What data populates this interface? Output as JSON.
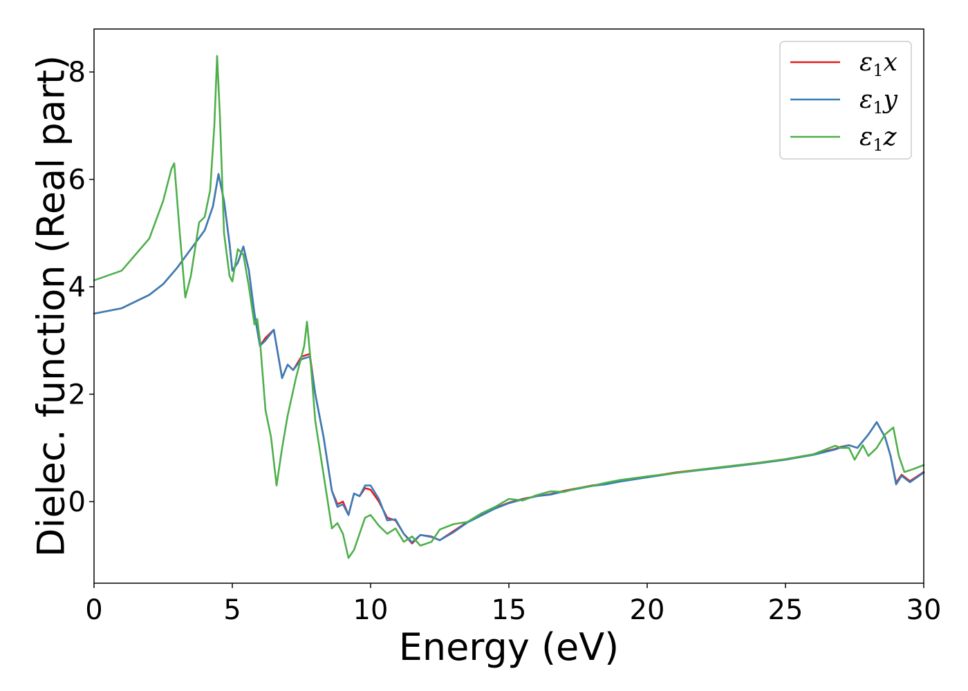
{
  "chart_data": {
    "type": "line",
    "xlabel": "Energy (eV)",
    "ylabel": "Dielec. function (Real part)",
    "xlim": [
      0,
      30
    ],
    "ylim": [
      -1.52,
      8.8
    ],
    "xticks": [
      0,
      5,
      10,
      15,
      20,
      25,
      30
    ],
    "xtick_labels": [
      "0",
      "5",
      "10",
      "15",
      "20",
      "25",
      "30"
    ],
    "yticks": [
      0,
      2,
      4,
      6,
      8
    ],
    "ytick_labels": [
      "0",
      "2",
      "4",
      "6",
      "8"
    ],
    "grid": false,
    "legend_position": "top-right",
    "series": [
      {
        "name": "ε1x",
        "symbol": "ε",
        "subscript": "1",
        "suffix": "x",
        "color": "#e41a1c",
        "x": [
          0,
          1,
          2,
          2.5,
          3,
          3.5,
          4,
          4.3,
          4.5,
          4.7,
          4.9,
          5.0,
          5.2,
          5.4,
          5.6,
          5.8,
          6.0,
          6.2,
          6.5,
          6.8,
          7.0,
          7.2,
          7.5,
          7.8,
          8.0,
          8.3,
          8.6,
          8.8,
          9.0,
          9.2,
          9.4,
          9.6,
          9.8,
          10.0,
          10.3,
          10.6,
          10.9,
          11.2,
          11.5,
          11.8,
          12.2,
          12.5,
          13.0,
          13.5,
          14.0,
          14.5,
          15.0,
          15.5,
          16.0,
          16.5,
          17.0,
          17.5,
          18.0,
          18.5,
          19.0,
          20.0,
          21.0,
          22.0,
          23.0,
          24.0,
          25.0,
          26.0,
          26.8,
          27.0,
          27.3,
          27.6,
          28.0,
          28.3,
          28.6,
          28.8,
          29.0,
          29.2,
          29.5,
          30.0
        ],
        "values": [
          3.5,
          3.6,
          3.85,
          4.05,
          4.35,
          4.7,
          5.05,
          5.5,
          6.1,
          5.6,
          4.8,
          4.3,
          4.45,
          4.75,
          4.3,
          3.5,
          2.9,
          3.05,
          3.2,
          2.3,
          2.55,
          2.45,
          2.7,
          2.75,
          2.0,
          1.2,
          0.2,
          -0.05,
          0.0,
          -0.25,
          0.15,
          0.1,
          0.25,
          0.22,
          0.0,
          -0.3,
          -0.35,
          -0.6,
          -0.78,
          -0.62,
          -0.65,
          -0.72,
          -0.55,
          -0.38,
          -0.25,
          -0.12,
          -0.02,
          0.05,
          0.1,
          0.14,
          0.2,
          0.25,
          0.3,
          0.33,
          0.38,
          0.46,
          0.54,
          0.6,
          0.66,
          0.72,
          0.79,
          0.88,
          0.98,
          1.02,
          1.05,
          1.0,
          1.25,
          1.48,
          1.2,
          0.85,
          0.35,
          0.5,
          0.38,
          0.55
        ]
      },
      {
        "name": "ε1y",
        "symbol": "ε",
        "subscript": "1",
        "suffix": "y",
        "color": "#377eb8",
        "x": [
          0,
          1,
          2,
          2.5,
          3,
          3.5,
          4,
          4.3,
          4.5,
          4.7,
          4.9,
          5.0,
          5.2,
          5.4,
          5.6,
          5.8,
          6.0,
          6.2,
          6.5,
          6.8,
          7.0,
          7.2,
          7.5,
          7.8,
          8.0,
          8.3,
          8.6,
          8.8,
          9.0,
          9.2,
          9.4,
          9.6,
          9.8,
          10.0,
          10.3,
          10.6,
          10.9,
          11.2,
          11.5,
          11.8,
          12.2,
          12.5,
          13.0,
          13.5,
          14.0,
          14.5,
          15.0,
          15.5,
          16.0,
          16.5,
          17.0,
          17.5,
          18.0,
          18.5,
          19.0,
          20.0,
          21.0,
          22.0,
          23.0,
          24.0,
          25.0,
          26.0,
          26.8,
          27.0,
          27.3,
          27.6,
          28.0,
          28.3,
          28.6,
          28.8,
          29.0,
          29.2,
          29.5,
          30.0
        ],
        "values": [
          3.5,
          3.6,
          3.85,
          4.05,
          4.35,
          4.7,
          5.05,
          5.5,
          6.1,
          5.6,
          4.8,
          4.3,
          4.45,
          4.75,
          4.3,
          3.5,
          2.9,
          3.0,
          3.2,
          2.3,
          2.55,
          2.45,
          2.65,
          2.7,
          2.0,
          1.2,
          0.2,
          -0.1,
          -0.05,
          -0.25,
          0.15,
          0.1,
          0.3,
          0.3,
          0.05,
          -0.35,
          -0.33,
          -0.6,
          -0.76,
          -0.62,
          -0.66,
          -0.72,
          -0.57,
          -0.39,
          -0.26,
          -0.13,
          -0.03,
          0.04,
          0.1,
          0.13,
          0.19,
          0.24,
          0.29,
          0.32,
          0.37,
          0.45,
          0.53,
          0.59,
          0.65,
          0.71,
          0.78,
          0.87,
          0.97,
          1.01,
          1.05,
          1.0,
          1.25,
          1.48,
          1.2,
          0.85,
          0.32,
          0.48,
          0.36,
          0.54
        ]
      },
      {
        "name": "ε1z",
        "symbol": "ε",
        "subscript": "1",
        "suffix": "z",
        "color": "#4daf4a",
        "x": [
          0,
          1,
          2,
          2.5,
          2.8,
          2.9,
          3.1,
          3.3,
          3.5,
          3.8,
          4.0,
          4.2,
          4.35,
          4.45,
          4.55,
          4.7,
          4.9,
          5.0,
          5.2,
          5.4,
          5.6,
          5.8,
          5.9,
          6.0,
          6.2,
          6.4,
          6.6,
          6.8,
          7.0,
          7.3,
          7.6,
          7.7,
          7.8,
          8.0,
          8.3,
          8.6,
          8.8,
          9.0,
          9.2,
          9.4,
          9.6,
          9.8,
          10.0,
          10.3,
          10.6,
          10.9,
          11.2,
          11.5,
          11.8,
          12.2,
          12.5,
          13.0,
          13.5,
          14.0,
          14.5,
          15.0,
          15.5,
          16.0,
          16.5,
          17.0,
          17.5,
          18.0,
          18.5,
          19.0,
          20.0,
          21.0,
          22.0,
          23.0,
          24.0,
          25.0,
          26.0,
          26.8,
          27.0,
          27.3,
          27.5,
          27.8,
          28.0,
          28.3,
          28.6,
          28.9,
          29.1,
          29.3,
          29.6,
          30.0
        ],
        "values": [
          4.12,
          4.3,
          4.9,
          5.6,
          6.2,
          6.3,
          5.0,
          3.8,
          4.2,
          5.2,
          5.3,
          5.8,
          7.0,
          8.3,
          7.2,
          5.0,
          4.2,
          4.1,
          4.7,
          4.6,
          4.0,
          3.3,
          3.4,
          3.0,
          1.7,
          1.2,
          0.3,
          1.0,
          1.6,
          2.3,
          2.9,
          3.35,
          2.8,
          1.5,
          0.5,
          -0.5,
          -0.4,
          -0.6,
          -1.05,
          -0.9,
          -0.6,
          -0.3,
          -0.25,
          -0.45,
          -0.6,
          -0.5,
          -0.75,
          -0.65,
          -0.82,
          -0.75,
          -0.52,
          -0.42,
          -0.38,
          -0.22,
          -0.1,
          0.05,
          0.02,
          0.12,
          0.19,
          0.18,
          0.25,
          0.29,
          0.35,
          0.4,
          0.47,
          0.53,
          0.6,
          0.66,
          0.72,
          0.79,
          0.88,
          1.04,
          1.0,
          1.0,
          0.78,
          1.05,
          0.85,
          1.0,
          1.25,
          1.38,
          0.85,
          0.55,
          0.6,
          0.68
        ]
      }
    ]
  }
}
